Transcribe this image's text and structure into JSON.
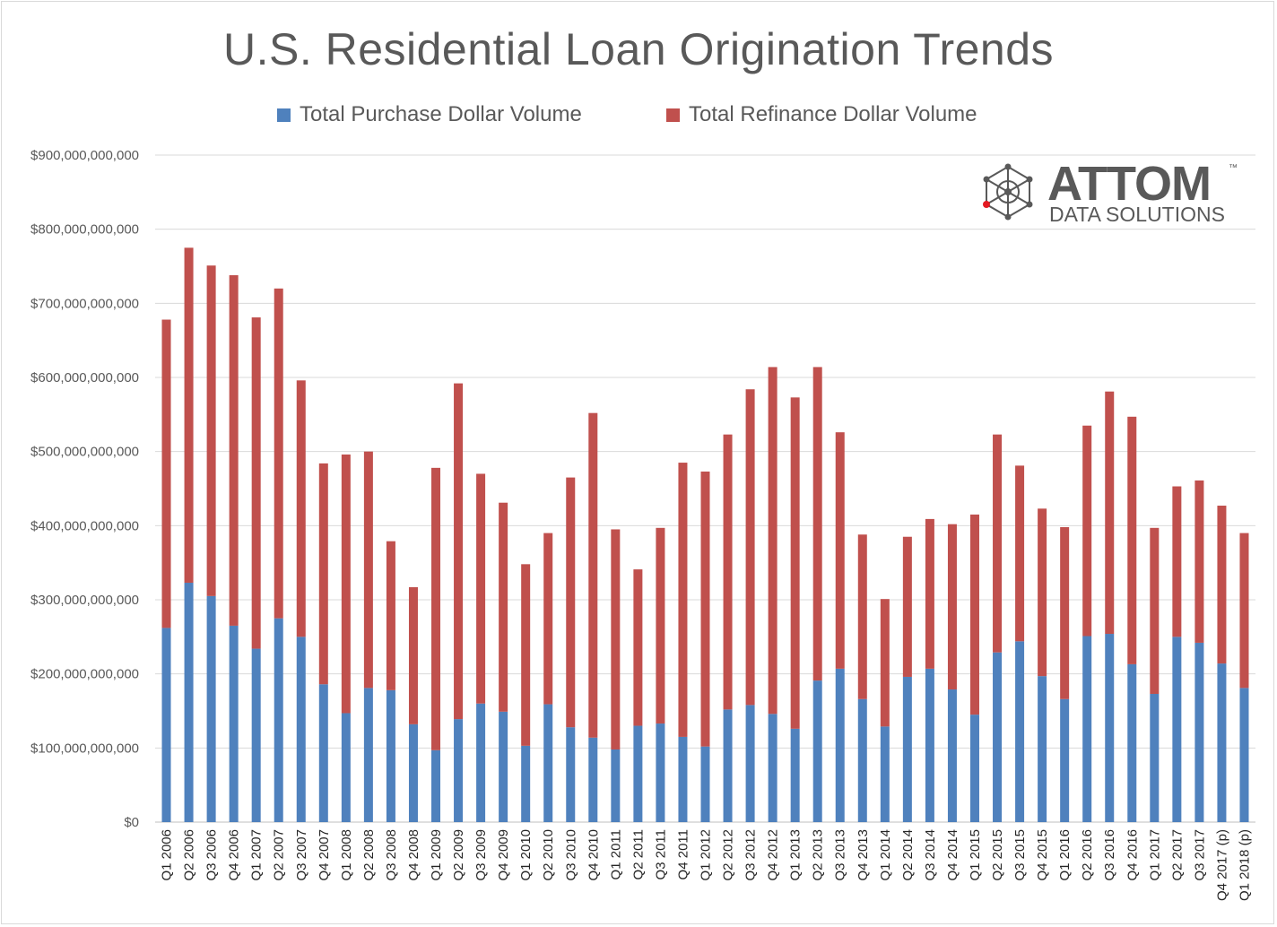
{
  "chart_data": {
    "type": "bar",
    "stacked": true,
    "title": "U.S. Residential Loan Origination Trends",
    "xlabel": "",
    "ylabel": "",
    "ylim": [
      0,
      900000000000
    ],
    "yticks": [
      "$0",
      "$100,000,000,000",
      "$200,000,000,000",
      "$300,000,000,000",
      "$400,000,000,000",
      "$500,000,000,000",
      "$600,000,000,000",
      "$700,000,000,000",
      "$800,000,000,000",
      "$900,000,000,000"
    ],
    "grid": true,
    "legend_position": "top",
    "categories": [
      "Q1 2006",
      "Q2 2006",
      "Q3 2006",
      "Q4 2006",
      "Q1 2007",
      "Q2 2007",
      "Q3 2007",
      "Q4 2007",
      "Q1 2008",
      "Q2 2008",
      "Q3 2008",
      "Q4 2008",
      "Q1 2009",
      "Q2 2009",
      "Q3 2009",
      "Q4 2009",
      "Q1 2010",
      "Q2 2010",
      "Q3 2010",
      "Q4 2010",
      "Q1 2011",
      "Q2 2011",
      "Q3 2011",
      "Q4 2011",
      "Q1 2012",
      "Q2 2012",
      "Q3 2012",
      "Q4 2012",
      "Q1 2013",
      "Q2 2013",
      "Q3 2013",
      "Q4 2013",
      "Q1 2014",
      "Q2 2014",
      "Q3 2014",
      "Q4 2014",
      "Q1 2015",
      "Q2 2015",
      "Q3 2015",
      "Q4 2015",
      "Q1 2016",
      "Q2 2016",
      "Q3 2016",
      "Q4 2016",
      "Q1 2017",
      "Q2 2017",
      "Q3 2017",
      "Q4 2017 (p)",
      "Q1 2018 (p)"
    ],
    "series": [
      {
        "name": "Total Purchase Dollar Volume",
        "color": "#4f81bd",
        "values": [
          262000000000,
          323000000000,
          305000000000,
          265000000000,
          234000000000,
          275000000000,
          250000000000,
          186000000000,
          147000000000,
          181000000000,
          178000000000,
          132000000000,
          97000000000,
          139000000000,
          160000000000,
          149000000000,
          103000000000,
          159000000000,
          128000000000,
          114000000000,
          98000000000,
          130000000000,
          133000000000,
          115000000000,
          102000000000,
          152000000000,
          158000000000,
          146000000000,
          126000000000,
          191000000000,
          207000000000,
          166000000000,
          129000000000,
          196000000000,
          207000000000,
          179000000000,
          145000000000,
          229000000000,
          244000000000,
          197000000000,
          166000000000,
          251000000000,
          254000000000,
          213000000000,
          173000000000,
          250000000000,
          242000000000,
          214000000000,
          181000000000
        ]
      },
      {
        "name": "Total Refinance Dollar Volume",
        "color": "#c0504d",
        "values": [
          416000000000,
          452000000000,
          446000000000,
          473000000000,
          447000000000,
          445000000000,
          346000000000,
          298000000000,
          349000000000,
          319000000000,
          201000000000,
          185000000000,
          381000000000,
          453000000000,
          310000000000,
          282000000000,
          245000000000,
          231000000000,
          337000000000,
          438000000000,
          297000000000,
          211000000000,
          264000000000,
          370000000000,
          371000000000,
          371000000000,
          426000000000,
          468000000000,
          447000000000,
          423000000000,
          319000000000,
          222000000000,
          172000000000,
          189000000000,
          202000000000,
          223000000000,
          270000000000,
          294000000000,
          237000000000,
          226000000000,
          232000000000,
          284000000000,
          327000000000,
          334000000000,
          224000000000,
          203000000000,
          219000000000,
          213000000000,
          209000000000
        ]
      }
    ]
  },
  "logo": {
    "name": "ATTOM",
    "tm": "™",
    "tagline": "DATA SOLUTIONS",
    "icon": "attom-molecule-icon"
  }
}
